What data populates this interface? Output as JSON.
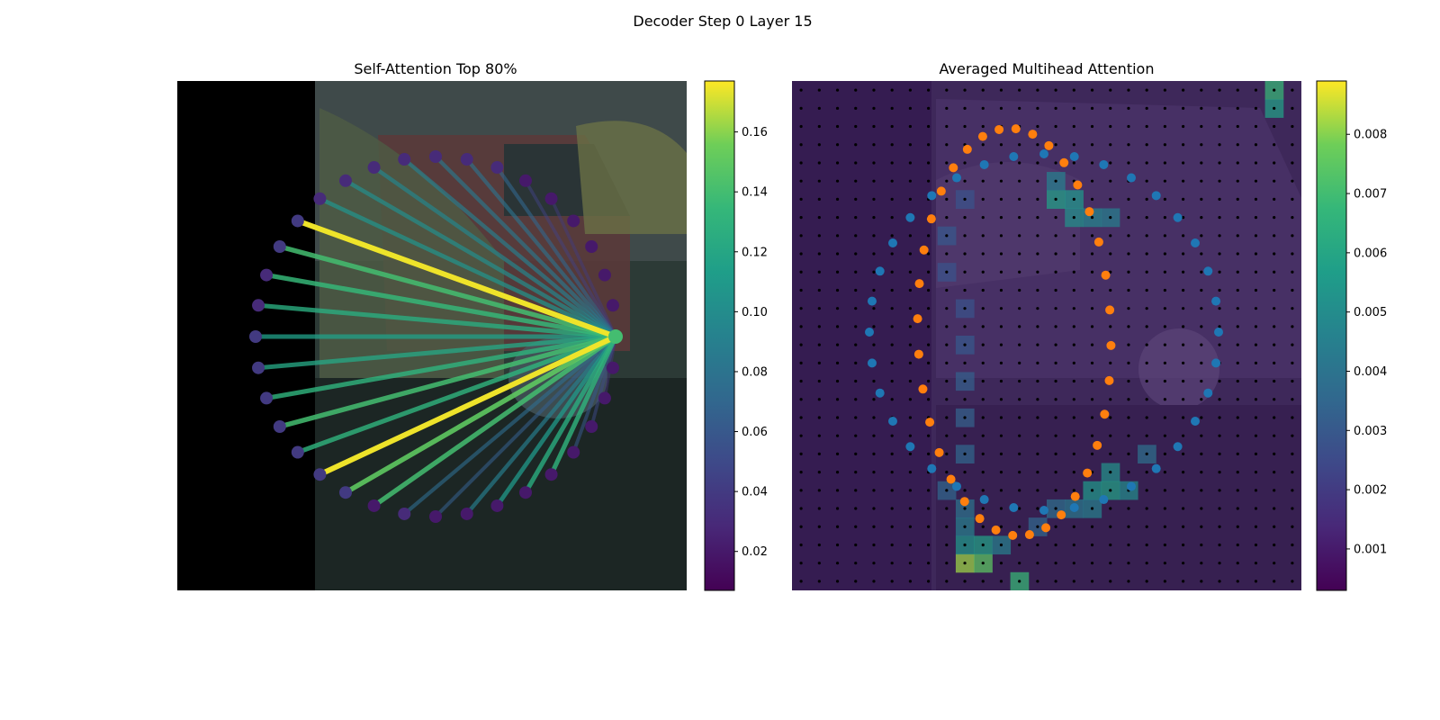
{
  "figure": {
    "title": "Decoder Step 0 Layer 15"
  },
  "chart_data": [
    {
      "type": "network",
      "title": "Self-Attention Top 80%",
      "node_count": 36,
      "query_node": 0,
      "edges_to_node": [
        {
          "node": 22,
          "weight": 0.175
        },
        {
          "node": 13,
          "weight": 0.175
        },
        {
          "node": 21,
          "weight": 0.14
        },
        {
          "node": 20,
          "weight": 0.135
        },
        {
          "node": 19,
          "weight": 0.125
        },
        {
          "node": 18,
          "weight": 0.115
        },
        {
          "node": 17,
          "weight": 0.12
        },
        {
          "node": 16,
          "weight": 0.13
        },
        {
          "node": 15,
          "weight": 0.14
        },
        {
          "node": 14,
          "weight": 0.13
        },
        {
          "node": 12,
          "weight": 0.15
        },
        {
          "node": 11,
          "weight": 0.14
        },
        {
          "node": 10,
          "weight": 0.075
        },
        {
          "node": 9,
          "weight": 0.065
        },
        {
          "node": 8,
          "weight": 0.09
        },
        {
          "node": 7,
          "weight": 0.11
        },
        {
          "node": 6,
          "weight": 0.125
        },
        {
          "node": 5,
          "weight": 0.13
        },
        {
          "node": 23,
          "weight": 0.105
        },
        {
          "node": 24,
          "weight": 0.1
        },
        {
          "node": 25,
          "weight": 0.095
        },
        {
          "node": 26,
          "weight": 0.09
        },
        {
          "node": 27,
          "weight": 0.085
        },
        {
          "node": 28,
          "weight": 0.08
        },
        {
          "node": 29,
          "weight": 0.07
        },
        {
          "node": 4,
          "weight": 0.06
        },
        {
          "node": 3,
          "weight": 0.05
        },
        {
          "node": 30,
          "weight": 0.045
        },
        {
          "node": 31,
          "weight": 0.04
        },
        {
          "node": 2,
          "weight": 0.035
        }
      ],
      "node_weights": [
        0.14,
        0.02,
        0.02,
        0.02,
        0.02,
        0.02,
        0.02,
        0.02,
        0.02,
        0.02,
        0.03,
        0.02,
        0.04,
        0.04,
        0.04,
        0.04,
        0.04,
        0.04,
        0.04,
        0.03,
        0.03,
        0.04,
        0.04,
        0.03,
        0.03,
        0.03,
        0.03,
        0.03,
        0.03,
        0.03,
        0.02,
        0.02,
        0.02,
        0.02,
        0.02,
        0.02
      ],
      "colorbar": {
        "ticks": [
          0.02,
          0.04,
          0.06,
          0.08,
          0.1,
          0.12,
          0.14,
          0.16
        ],
        "tick_labels": [
          "0.02",
          "0.04",
          "0.06",
          "0.08",
          "0.10",
          "0.12",
          "0.14",
          "0.16"
        ],
        "range": [
          0.007,
          0.177
        ],
        "colormap": "viridis"
      }
    },
    {
      "type": "heatmap",
      "title": "Averaged Multihead Attention",
      "grid": [
        28,
        28
      ],
      "hot_cells": [
        {
          "col": 26,
          "row": 0,
          "v": 0.0068
        },
        {
          "col": 26,
          "row": 1,
          "v": 0.0058
        },
        {
          "col": 9,
          "row": 26,
          "v": 0.0082
        },
        {
          "col": 10,
          "row": 26,
          "v": 0.0075
        },
        {
          "col": 12,
          "row": 27,
          "v": 0.0068
        },
        {
          "col": 10,
          "row": 25,
          "v": 0.0058
        },
        {
          "col": 9,
          "row": 25,
          "v": 0.0055
        },
        {
          "col": 11,
          "row": 25,
          "v": 0.0045
        },
        {
          "col": 14,
          "row": 6,
          "v": 0.0058
        },
        {
          "col": 15,
          "row": 6,
          "v": 0.0055
        },
        {
          "col": 15,
          "row": 7,
          "v": 0.0052
        },
        {
          "col": 16,
          "row": 7,
          "v": 0.0048
        },
        {
          "col": 17,
          "row": 7,
          "v": 0.0045
        },
        {
          "col": 14,
          "row": 5,
          "v": 0.0045
        },
        {
          "col": 17,
          "row": 21,
          "v": 0.0052
        },
        {
          "col": 16,
          "row": 22,
          "v": 0.0055
        },
        {
          "col": 17,
          "row": 22,
          "v": 0.0058
        },
        {
          "col": 18,
          "row": 22,
          "v": 0.005
        },
        {
          "col": 16,
          "row": 23,
          "v": 0.0045
        },
        {
          "col": 15,
          "row": 23,
          "v": 0.0042
        },
        {
          "col": 9,
          "row": 23,
          "v": 0.004
        },
        {
          "col": 9,
          "row": 24,
          "v": 0.0045
        },
        {
          "col": 8,
          "row": 22,
          "v": 0.0035
        },
        {
          "col": 9,
          "row": 20,
          "v": 0.0035
        },
        {
          "col": 9,
          "row": 18,
          "v": 0.0033
        },
        {
          "col": 9,
          "row": 16,
          "v": 0.0032
        },
        {
          "col": 9,
          "row": 14,
          "v": 0.003
        },
        {
          "col": 9,
          "row": 12,
          "v": 0.0028
        },
        {
          "col": 8,
          "row": 10,
          "v": 0.0028
        },
        {
          "col": 8,
          "row": 8,
          "v": 0.003
        },
        {
          "col": 9,
          "row": 6,
          "v": 0.0028
        },
        {
          "col": 19,
          "row": 20,
          "v": 0.0038
        },
        {
          "col": 13,
          "row": 24,
          "v": 0.0035
        },
        {
          "col": 14,
          "row": 23,
          "v": 0.0038
        }
      ],
      "background_value": 0.0012,
      "series": [
        {
          "name": "",
          "color": "#1f77b4",
          "point_count": 36
        },
        {
          "name": "",
          "color": "#ff7f0e",
          "point_count": 36
        }
      ],
      "colorbar": {
        "ticks": [
          0.001,
          0.002,
          0.003,
          0.004,
          0.005,
          0.006,
          0.007,
          0.008
        ],
        "tick_labels": [
          "0.001",
          "0.002",
          "0.003",
          "0.004",
          "0.005",
          "0.006",
          "0.007",
          "0.008"
        ],
        "range": [
          0.0003,
          0.0089
        ],
        "colormap": "viridis"
      }
    }
  ]
}
